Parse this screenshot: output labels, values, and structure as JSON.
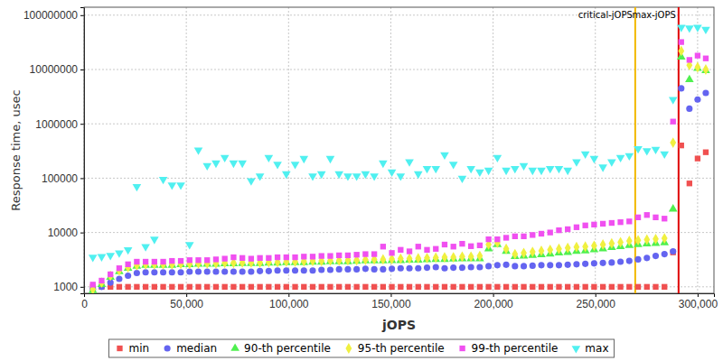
{
  "chart_data": {
    "type": "scatter",
    "x_label": "jOPS",
    "y_label": "Response time, usec",
    "log": "y",
    "grid": true,
    "legend": "bottom",
    "xlim": [
      0,
      308000
    ],
    "ylim": [
      760,
      140000000
    ],
    "xticks": [
      0,
      {
        "value": 50000,
        "label": "50,000"
      },
      {
        "value": 100000,
        "label": "100,000"
      },
      {
        "value": 150000,
        "label": "150,000"
      },
      {
        "value": 200000,
        "label": "200,000"
      },
      {
        "value": 250000,
        "label": "250,000"
      },
      {
        "value": 300000,
        "label": "300,000"
      }
    ],
    "yticks": [
      1000,
      10000,
      100000,
      1000000,
      10000000,
      100000000
    ],
    "annotations": [
      {
        "text": "critical-jOPS",
        "x": 269500,
        "color": "#f2b800"
      },
      {
        "text": "max-jOPS",
        "x": 290700,
        "color": "#e00000"
      }
    ],
    "x": [
      4300,
      8600,
      12900,
      17200,
      21500,
      25800,
      30100,
      34400,
      38700,
      43000,
      47300,
      51600,
      55900,
      60200,
      64500,
      68800,
      73100,
      77400,
      81700,
      86000,
      90300,
      94600,
      98900,
      103200,
      107500,
      111800,
      116100,
      120400,
      124700,
      129000,
      133300,
      137600,
      141900,
      146200,
      150500,
      154800,
      159100,
      163400,
      167700,
      172000,
      176300,
      180600,
      184900,
      189200,
      193500,
      197800,
      202100,
      206400,
      210700,
      215000,
      219300,
      223600,
      227900,
      232200,
      236500,
      240800,
      245100,
      249400,
      253700,
      258000,
      262300,
      266600,
      270900,
      275200,
      279500,
      283800,
      288000,
      292000,
      296000,
      300000,
      304000
    ],
    "series": [
      {
        "name": "min",
        "color": "#f05050",
        "marker": "square",
        "values": [
          1000,
          1000,
          1000,
          1000,
          1000,
          1000,
          1000,
          1000,
          1000,
          1000,
          1000,
          1000,
          1000,
          1000,
          1000,
          1000,
          1000,
          1000,
          1000,
          1000,
          1000,
          1000,
          1000,
          1000,
          1000,
          1000,
          1000,
          1000,
          1000,
          1000,
          1000,
          1000,
          1000,
          1000,
          1000,
          1000,
          1000,
          1000,
          1000,
          1000,
          1000,
          1000,
          1000,
          1000,
          1000,
          1000,
          1000,
          1000,
          1000,
          1000,
          1000,
          1000,
          1000,
          1000,
          1000,
          1000,
          1000,
          1000,
          1000,
          1000,
          1000,
          1000,
          1000,
          1000,
          1000,
          1000,
          4300,
          400000,
          80000,
          230000,
          300000
        ]
      },
      {
        "name": "median",
        "color": "#6464f0",
        "marker": "circle",
        "values": [
          900,
          1000,
          1200,
          1400,
          1600,
          1800,
          1850,
          1850,
          1850,
          1850,
          1850,
          1900,
          1900,
          1900,
          1900,
          1900,
          1900,
          1900,
          1900,
          1950,
          1950,
          2000,
          2000,
          2000,
          2000,
          2000,
          2050,
          2050,
          2100,
          2100,
          2100,
          2150,
          2100,
          2100,
          2150,
          2200,
          2200,
          2200,
          2250,
          2300,
          2200,
          2250,
          2250,
          2300,
          2300,
          2400,
          2500,
          2550,
          2400,
          2400,
          2450,
          2500,
          2500,
          2500,
          2550,
          2600,
          2650,
          2700,
          2750,
          2800,
          2900,
          3000,
          3200,
          3400,
          3700,
          4000,
          4500,
          4500000,
          1900000,
          2800000,
          3700000
        ]
      },
      {
        "name": "90-th percentile",
        "color": "#50f050",
        "marker": "triangle",
        "values": [
          850,
          1100,
          1500,
          1900,
          2200,
          2400,
          2500,
          2500,
          2500,
          2500,
          2550,
          2550,
          2600,
          2600,
          2600,
          2650,
          2650,
          2700,
          2700,
          2700,
          2750,
          2750,
          2800,
          2800,
          2800,
          2850,
          2850,
          2900,
          2900,
          2900,
          2950,
          3000,
          3000,
          3000,
          3050,
          3050,
          3100,
          3100,
          3150,
          3200,
          3200,
          3250,
          3300,
          3300,
          3300,
          5000,
          6000,
          4500,
          3600,
          3700,
          3800,
          3900,
          4000,
          4200,
          4300,
          4500,
          4600,
          4800,
          5000,
          5300,
          5500,
          5800,
          6000,
          6200,
          6300,
          6500,
          27000,
          17000000,
          6500000,
          10500000,
          9500000
        ]
      },
      {
        "name": "95-th percentile",
        "color": "#f0f040",
        "marker": "diamond",
        "values": [
          900,
          1200,
          1600,
          2000,
          2300,
          2500,
          2600,
          2600,
          2600,
          2600,
          2650,
          2650,
          2700,
          2700,
          2700,
          2750,
          2750,
          2800,
          2800,
          2800,
          2850,
          2850,
          2900,
          2900,
          2950,
          3000,
          3000,
          3050,
          3050,
          3100,
          3100,
          3150,
          3200,
          3200,
          3250,
          3300,
          3300,
          3350,
          3400,
          3450,
          3500,
          3500,
          3600,
          3600,
          3700,
          6000,
          6500,
          5000,
          4000,
          4200,
          4400,
          4600,
          4800,
          5000,
          5200,
          5400,
          5500,
          5700,
          6000,
          6300,
          6600,
          7000,
          7200,
          7400,
          7600,
          7800,
          450000,
          22000000,
          12000000,
          11000000,
          10000000
        ]
      },
      {
        "name": "99-th percentile",
        "color": "#f050f0",
        "marker": "square",
        "values": [
          1100,
          1300,
          1700,
          2200,
          2600,
          2900,
          2900,
          2900,
          2900,
          3000,
          3000,
          3100,
          3100,
          3100,
          3200,
          3300,
          3500,
          3400,
          3300,
          3400,
          3400,
          3500,
          3500,
          3500,
          3600,
          3600,
          3700,
          3700,
          3800,
          3800,
          3900,
          4000,
          4000,
          5500,
          4200,
          4800,
          4500,
          5500,
          4800,
          5000,
          6000,
          5500,
          6200,
          5600,
          5800,
          7500,
          7500,
          8000,
          8500,
          8500,
          9000,
          9500,
          10000,
          11000,
          11500,
          12500,
          13500,
          14000,
          14500,
          15000,
          15500,
          16000,
          19000,
          21000,
          19000,
          18000,
          1100000,
          32000000,
          15000000,
          18000000,
          16000000
        ]
      },
      {
        "name": "max",
        "color": "#50f0f0",
        "marker": "triangle-down",
        "values": [
          3500,
          3600,
          3800,
          4200,
          4800,
          70000,
          5500,
          7500,
          95000,
          75000,
          75000,
          6000,
          330000,
          170000,
          190000,
          240000,
          190000,
          190000,
          90000,
          110000,
          240000,
          180000,
          120000,
          180000,
          230000,
          110000,
          120000,
          230000,
          120000,
          110000,
          110000,
          120000,
          110000,
          190000,
          130000,
          110000,
          200000,
          120000,
          150000,
          150000,
          270000,
          180000,
          100000,
          150000,
          130000,
          140000,
          240000,
          140000,
          150000,
          170000,
          140000,
          140000,
          150000,
          150000,
          140000,
          200000,
          280000,
          230000,
          160000,
          200000,
          240000,
          260000,
          350000,
          320000,
          340000,
          280000,
          2800000,
          60000000,
          58000000,
          60000000,
          55000000
        ]
      }
    ]
  }
}
